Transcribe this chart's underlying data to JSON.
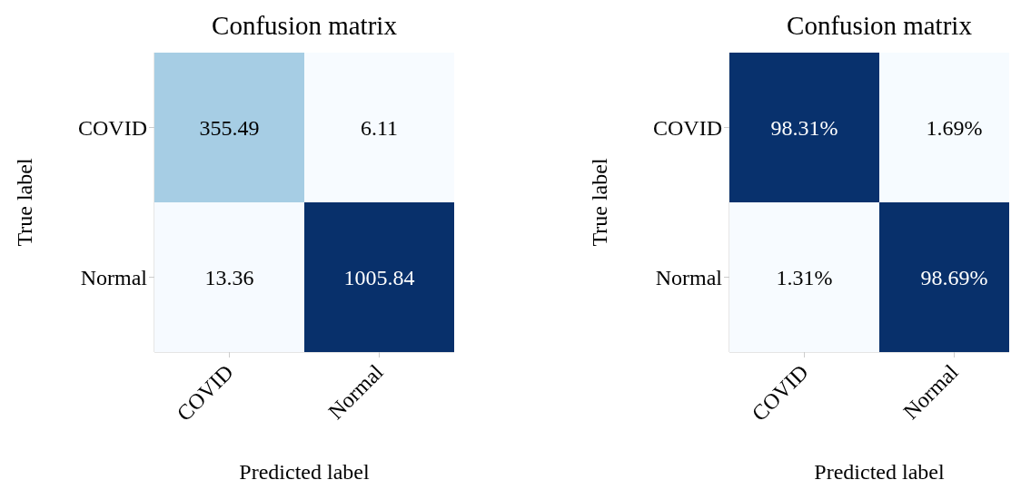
{
  "chart_data": [
    {
      "type": "heatmap",
      "title": "Confusion matrix",
      "xlabel": "Predicted label",
      "ylabel": "True label",
      "categories": [
        "COVID",
        "Normal"
      ],
      "y_categories": [
        "COVID",
        "Normal"
      ],
      "cells": [
        [
          355.49,
          6.11
        ],
        [
          13.36,
          1005.84
        ]
      ],
      "data_labels": true
    },
    {
      "type": "heatmap",
      "title": "Confusion matrix",
      "xlabel": "Predicted label",
      "ylabel": "True label",
      "categories": [
        "COVID",
        "Normal"
      ],
      "y_categories": [
        "COVID",
        "Normal"
      ],
      "cells": [
        [
          98.31,
          1.69
        ],
        [
          1.31,
          98.69
        ]
      ],
      "cell_labels": [
        [
          "98.31%",
          "1.69%"
        ],
        [
          "1.31%",
          "98.69%"
        ]
      ]
    }
  ]
}
